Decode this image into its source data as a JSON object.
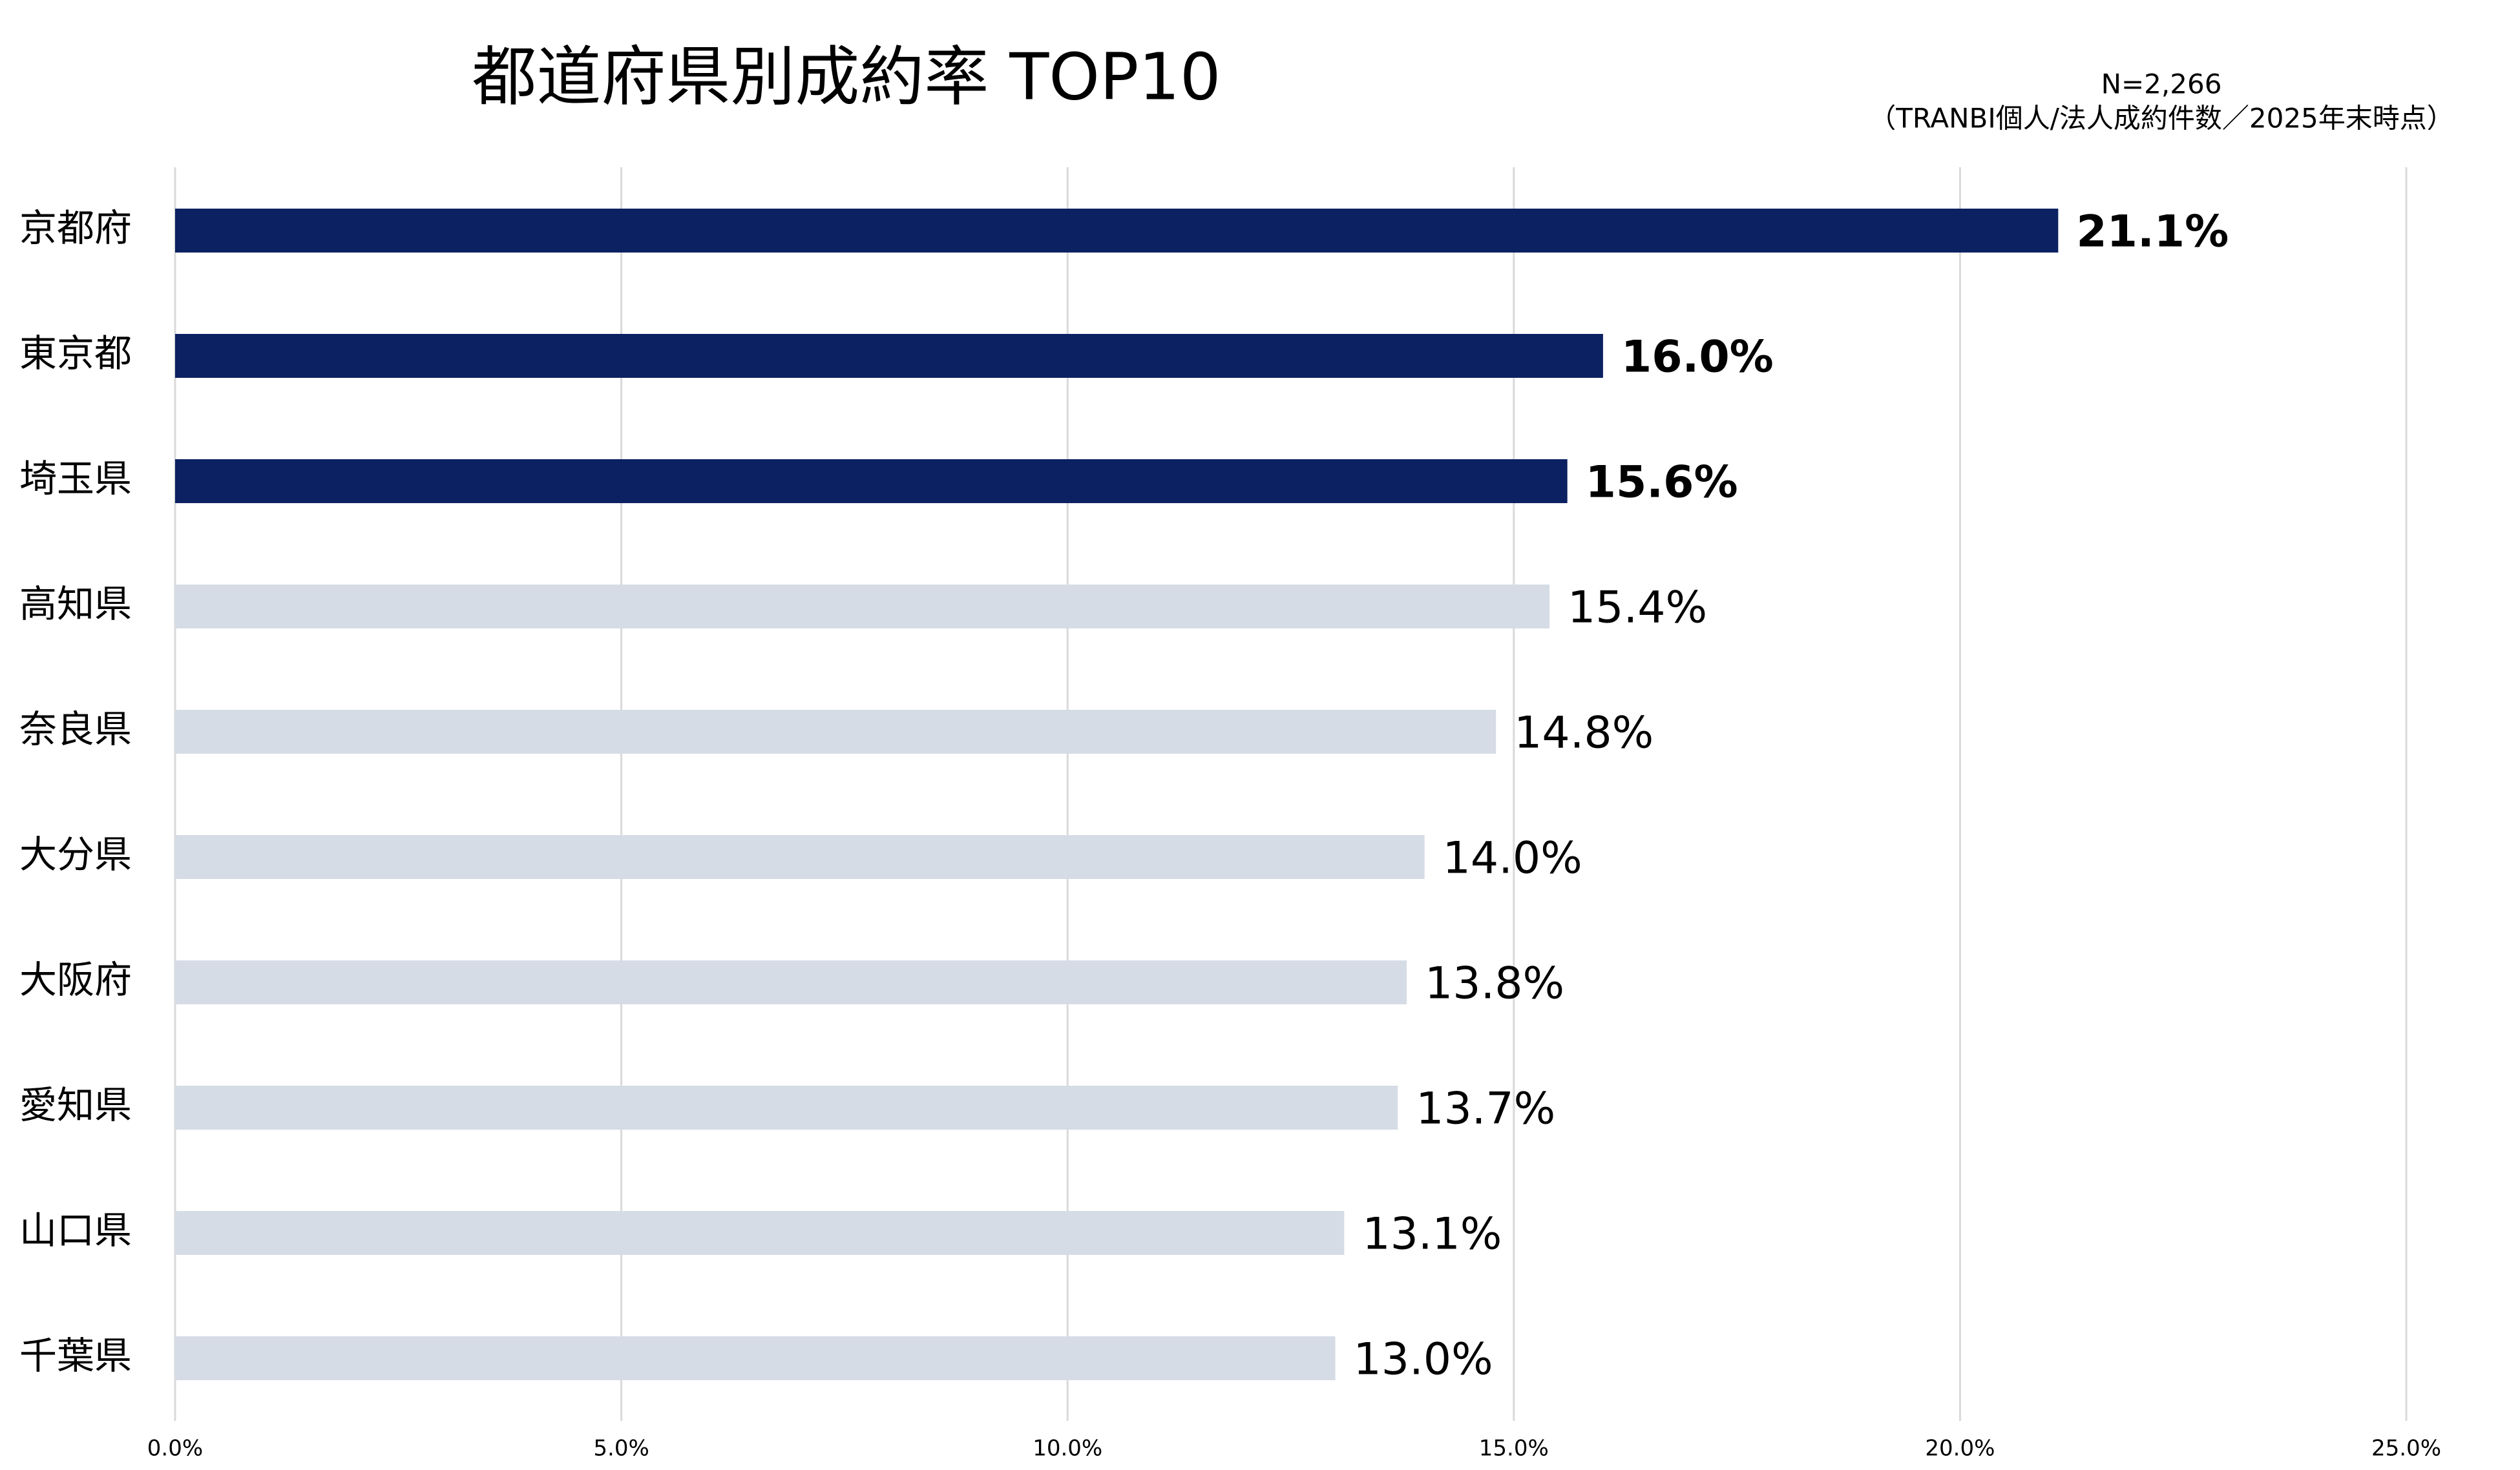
{
  "chart_data": {
    "type": "bar",
    "orientation": "horizontal",
    "title": "都道府県別成約率 TOP10",
    "subtitle": [
      "N=2,266",
      "（TRANBI個人/法人成約件数／2025年末時点）"
    ],
    "categories": [
      "京都府",
      "東京都",
      "埼玉県",
      "高知県",
      "奈良県",
      "大分県",
      "大阪府",
      "愛知県",
      "山口県",
      "千葉県"
    ],
    "values": [
      21.1,
      16.0,
      15.6,
      15.4,
      14.8,
      14.0,
      13.8,
      13.7,
      13.1,
      13.0
    ],
    "value_labels": [
      "21.1%",
      "16.0%",
      "15.6%",
      "15.4%",
      "14.8%",
      "14.0%",
      "13.8%",
      "13.7%",
      "13.1%",
      "13.0%"
    ],
    "colors": [
      "#0b2161",
      "#0b2161",
      "#0b2161",
      "#d6dce5",
      "#d6dce5",
      "#d6dce5",
      "#d6dce5",
      "#d6dce5",
      "#d6dce5",
      "#d6dce5"
    ],
    "highlight_color": "#0b2161",
    "xlim": [
      0,
      25
    ],
    "xticks": [
      {
        "value": 0,
        "label": "0.0%"
      },
      {
        "value": 5,
        "label": "5.0%"
      },
      {
        "value": 10,
        "label": "10.0%"
      },
      {
        "value": 15,
        "label": "15.0%"
      },
      {
        "value": 20,
        "label": "20.0%"
      },
      {
        "value": 25,
        "label": "25.0%"
      }
    ],
    "grid": true
  }
}
